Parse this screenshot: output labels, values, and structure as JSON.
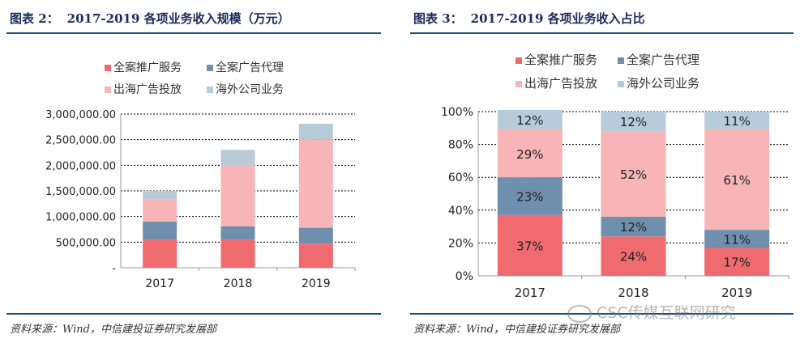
{
  "colors": {
    "full_promo": "#ef6b70",
    "full_agency": "#6f8fad",
    "overseas": "#f8b5b7",
    "overseas_public": "#b7cbd9",
    "rule": "#1f4e79",
    "title": "#1a2a5a"
  },
  "left": {
    "figure_label": "图表 2：",
    "figure_title": "2017-2019 各项业务收入规模（万元）",
    "source": "资料来源：Wind，中信建投证券研究发展部"
  },
  "right": {
    "figure_label": "图表 3：",
    "figure_title": "2017-2019 各项业务收入占比",
    "source": "资料来源：Wind，中信建投证券研究发展部"
  },
  "watermark": "CSC传媒互联网研究",
  "chart_data": [
    {
      "type": "bar",
      "stacked": true,
      "title": "2017-2019 各项业务收入规模（万元）",
      "categories": [
        "2017",
        "2018",
        "2019"
      ],
      "series": [
        {
          "name": "全案推广服务",
          "color": "#ef6b70",
          "values": [
            550000,
            550000,
            470000
          ]
        },
        {
          "name": "全案广告代理",
          "color": "#6f8fad",
          "values": [
            350000,
            260000,
            310000
          ]
        },
        {
          "name": "出海广告投放",
          "color": "#f8b5b7",
          "values": [
            430000,
            1200000,
            1720000
          ]
        },
        {
          "name": "海外公司业务",
          "color": "#b7cbd9",
          "values": [
            170000,
            290000,
            310000
          ]
        }
      ],
      "y_ticks": [
        0,
        500000,
        1000000,
        1500000,
        2000000,
        2500000,
        3000000
      ],
      "y_tick_labels": [
        "-",
        "500,000.00",
        "1,000,000.00",
        "1,500,000.00",
        "2,000,000.00",
        "2,500,000.00",
        "3,000,000.00"
      ],
      "ylim": [
        0,
        3000000
      ],
      "legend_position": "top",
      "grid": true
    },
    {
      "type": "bar",
      "stacked": true,
      "percent": true,
      "title": "2017-2019 各项业务收入占比",
      "categories": [
        "2017",
        "2018",
        "2019"
      ],
      "series": [
        {
          "name": "全案推广服务",
          "color": "#ef6b70",
          "values": [
            37,
            24,
            17
          ],
          "labels": [
            "37%",
            "24%",
            "17%"
          ]
        },
        {
          "name": "全案广告代理",
          "color": "#6f8fad",
          "values": [
            23,
            12,
            11
          ],
          "labels": [
            "23%",
            "12%",
            "11%"
          ]
        },
        {
          "name": "出海广告投放",
          "color": "#f8b5b7",
          "values": [
            29,
            52,
            61
          ],
          "labels": [
            "29%",
            "52%",
            "61%"
          ]
        },
        {
          "name": "海外公司业务",
          "color": "#b7cbd9",
          "values": [
            12,
            12,
            11
          ],
          "labels": [
            "12%",
            "12%",
            "11%"
          ]
        }
      ],
      "y_ticks": [
        0,
        20,
        40,
        60,
        80,
        100
      ],
      "y_tick_labels": [
        "0%",
        "20%",
        "40%",
        "60%",
        "80%",
        "100%"
      ],
      "ylim": [
        0,
        100
      ],
      "legend_position": "top",
      "grid": true
    }
  ]
}
